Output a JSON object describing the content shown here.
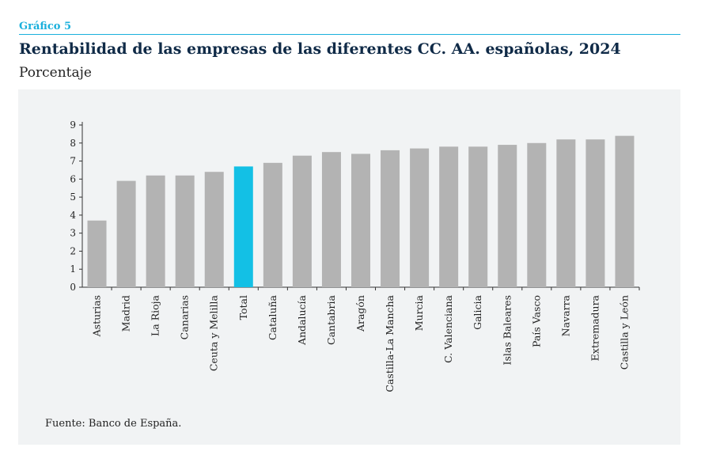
{
  "header": {
    "kicker": "Gráfico 5",
    "title": "Rentabilidad de las empresas de las diferentes CC. AA. españolas, 2024",
    "subtitle": "Porcentaje"
  },
  "source": "Fuente: Banco de España.",
  "colors": {
    "bar": "#b3b3b3",
    "highlight": "#13c0e5"
  },
  "chart_data": {
    "type": "bar",
    "title": "Rentabilidad de las empresas de las diferentes CC. AA. españolas, 2024",
    "ylabel": "Porcentaje",
    "xlabel": "",
    "ylim": [
      0,
      9
    ],
    "yticks": [
      "0",
      "1",
      "2",
      "3",
      "4",
      "5",
      "6",
      "7",
      "8",
      "9"
    ],
    "highlight": "Total",
    "categories": [
      "Asturias",
      "Madrid",
      "La Rioja",
      "Canarias",
      "Ceuta y Melilla",
      "Total",
      "Cataluña",
      "Andalucía",
      "Cantabria",
      "Aragón",
      "Castilla-La Mancha",
      "Murcia",
      "C. Valenciana",
      "Galicia",
      "Islas Baleares",
      "País Vasco",
      "Navarra",
      "Extremadura",
      "Castilla y León"
    ],
    "values": [
      3.7,
      5.9,
      6.2,
      6.2,
      6.4,
      6.7,
      6.9,
      7.3,
      7.5,
      7.4,
      7.6,
      7.7,
      7.8,
      7.8,
      7.9,
      8.0,
      8.2,
      8.2,
      8.4
    ]
  }
}
